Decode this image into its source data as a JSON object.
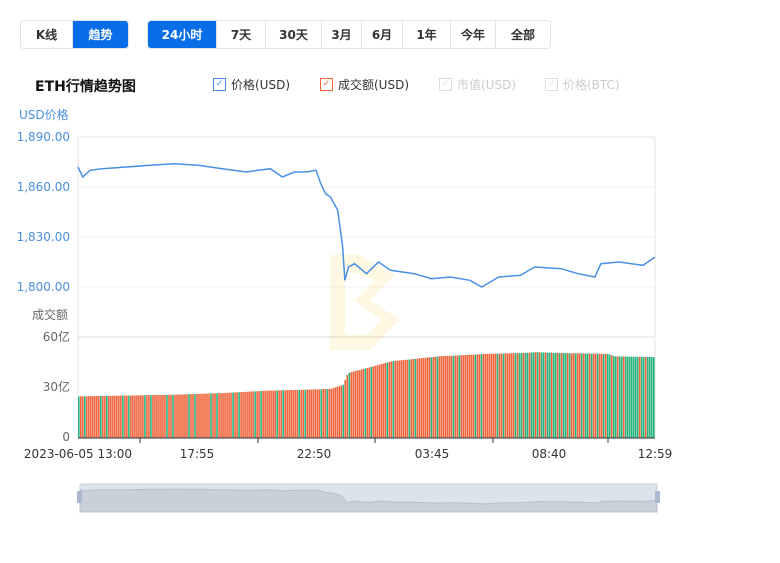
{
  "mode_tabs": [
    {
      "label": "K线",
      "active": false
    },
    {
      "label": "趋势",
      "active": true
    }
  ],
  "range_tabs": [
    {
      "label": "24小时",
      "active": true
    },
    {
      "label": "7天"
    },
    {
      "label": "30天"
    },
    {
      "label": "3月"
    },
    {
      "label": "6月"
    },
    {
      "label": "1年"
    },
    {
      "label": "今年"
    },
    {
      "label": "全部"
    }
  ],
  "title": "ETH行情趋势图",
  "legend": [
    {
      "label": "价格(USD)",
      "checked": true,
      "color": "#4a90e2"
    },
    {
      "label": "成交额(USD)",
      "checked": true,
      "color": "#f0643c"
    },
    {
      "label": "市值(USD)",
      "checked": false,
      "color": "#cccccc"
    },
    {
      "label": "价格(BTC)",
      "checked": false,
      "color": "#cccccc"
    }
  ],
  "chart_data": {
    "type": "line+bar",
    "price_axis_label": "USD价格",
    "price_ticks": [
      "1,890.00",
      "1,860.00",
      "1,830.00",
      "1,800.00"
    ],
    "price_ylim": [
      1800,
      1890
    ],
    "volume_axis_label": "成交额",
    "volume_ticks": [
      "60亿",
      "30亿",
      "0"
    ],
    "volume_ylim": [
      0,
      60
    ],
    "x_ticks": [
      "2023-06-05 13:00",
      "17:55",
      "22:50",
      "03:45",
      "08:40",
      "12:59"
    ],
    "price_series": {
      "hours": [
        0,
        0.2,
        0.5,
        1,
        2,
        3,
        4,
        5,
        6,
        7,
        7.5,
        8,
        8.5,
        9,
        9.5,
        9.9,
        10.1,
        10.3,
        10.5,
        10.8,
        11.0,
        11.1,
        11.25,
        11.5,
        12,
        12.5,
        13,
        14,
        14.7,
        15.5,
        16.3,
        16.8,
        17.5,
        18.4,
        19,
        20.1,
        20.8,
        21.5,
        21.75,
        22.5,
        23.5,
        24
      ],
      "price": [
        1872,
        1866,
        1870,
        1871,
        1872,
        1873,
        1874,
        1873,
        1871,
        1869,
        1870,
        1871,
        1866,
        1869,
        1869,
        1870,
        1862,
        1856,
        1854,
        1846,
        1825,
        1804,
        1812,
        1814,
        1808,
        1815,
        1810,
        1808,
        1805,
        1806,
        1804,
        1800,
        1806,
        1807,
        1812,
        1811,
        1808,
        1806,
        1814,
        1815,
        1813,
        1818
      ]
    },
    "volume_series": {
      "hours": [
        0,
        4,
        6,
        8,
        9.5,
        10.5,
        11,
        11.2,
        12,
        13,
        15,
        17,
        18.5,
        19,
        20,
        22,
        22.3,
        24
      ],
      "value": [
        25,
        26,
        27,
        28.5,
        29,
        29.5,
        32,
        39,
        42,
        46,
        49,
        50.5,
        51,
        51.5,
        51,
        50.5,
        49,
        48.5
      ]
    },
    "colors": {
      "price": "#4a90e2",
      "volume_up": "#f0643c",
      "volume_down": "#26b47c"
    }
  }
}
